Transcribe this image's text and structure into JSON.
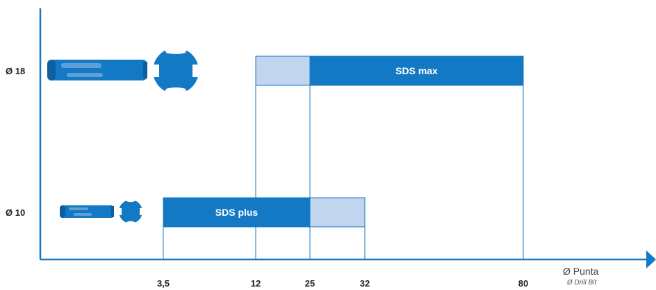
{
  "colors": {
    "primary": "#1479c4",
    "light": "#c2d5ee",
    "axis": "#1479c4",
    "text": "#1f1f1f"
  },
  "chart_data": {
    "type": "bar",
    "orientation": "horizontal",
    "categories": [
      "Ø 18",
      "Ø 10"
    ],
    "x_ticks": [
      {
        "value": 3.5,
        "label": "3,5"
      },
      {
        "value": 12,
        "label": "12"
      },
      {
        "value": 25,
        "label": "25"
      },
      {
        "value": 32,
        "label": "32"
      },
      {
        "value": 80,
        "label": "80"
      }
    ],
    "xlabel": "Ø Punta",
    "xlabel_sub": "Ø Drill Bit",
    "ylabel": "",
    "grid": false,
    "bars": [
      {
        "category": "Ø 18",
        "start": 12,
        "end": 25,
        "style": "light",
        "label": ""
      },
      {
        "category": "Ø 18",
        "start": 25,
        "end": 80,
        "style": "primary",
        "label": "SDS max"
      },
      {
        "category": "Ø 10",
        "start": 3.5,
        "end": 25,
        "style": "primary",
        "label": "SDS plus"
      },
      {
        "category": "Ø 10",
        "start": 25,
        "end": 32,
        "style": "light",
        "label": ""
      }
    ],
    "icons": [
      {
        "category": "Ø 18",
        "name": "sds-max-shank-icon"
      },
      {
        "category": "Ø 10",
        "name": "sds-plus-shank-icon"
      }
    ]
  }
}
